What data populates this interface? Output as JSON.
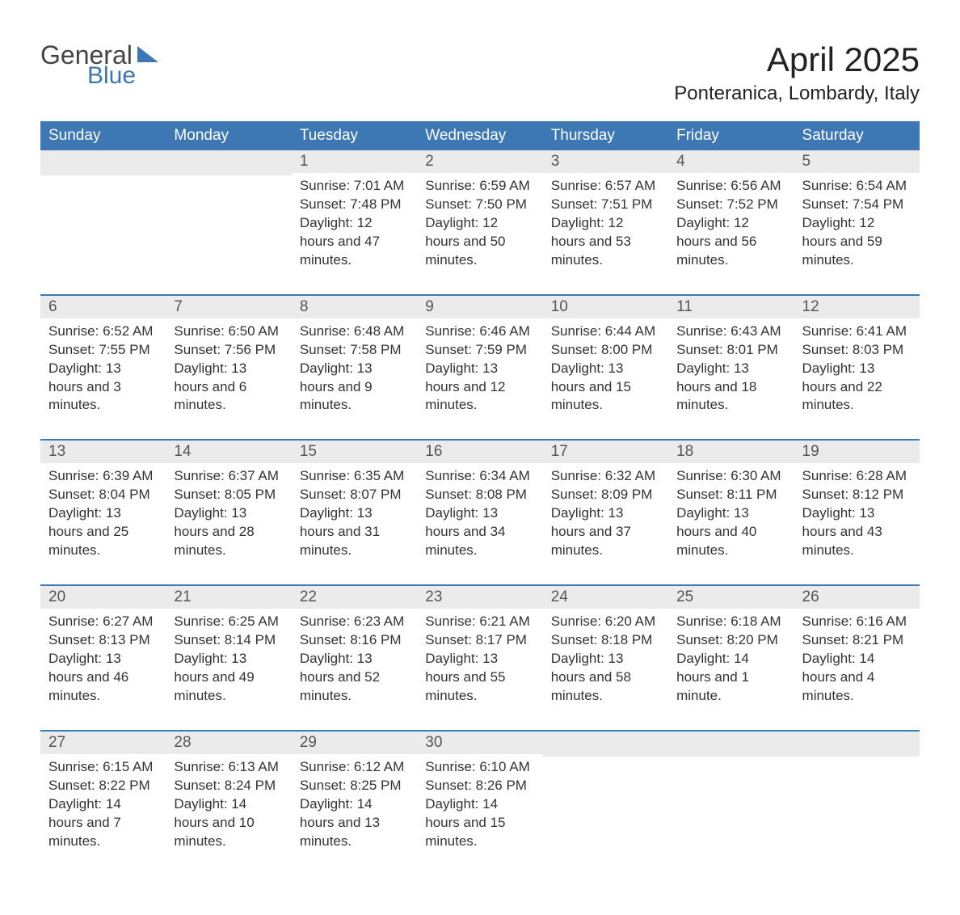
{
  "logo": {
    "text_general": "General",
    "text_blue": "Blue"
  },
  "title": "April 2025",
  "location": "Ponteranica, Lombardy, Italy",
  "colors": {
    "header_bg": "#3d78b5",
    "header_text": "#ffffff",
    "day_number_bg": "#ebebeb",
    "row_border": "#3d78b5",
    "body_text": "#333333",
    "logo_blue": "#3d78b5",
    "logo_gray": "#444444"
  },
  "weekdays": [
    "Sunday",
    "Monday",
    "Tuesday",
    "Wednesday",
    "Thursday",
    "Friday",
    "Saturday"
  ],
  "weeks": [
    [
      {
        "day": "",
        "sunrise": "",
        "sunset": "",
        "daylight": ""
      },
      {
        "day": "",
        "sunrise": "",
        "sunset": "",
        "daylight": ""
      },
      {
        "day": "1",
        "sunrise": "Sunrise: 7:01 AM",
        "sunset": "Sunset: 7:48 PM",
        "daylight": "Daylight: 12 hours and 47 minutes."
      },
      {
        "day": "2",
        "sunrise": "Sunrise: 6:59 AM",
        "sunset": "Sunset: 7:50 PM",
        "daylight": "Daylight: 12 hours and 50 minutes."
      },
      {
        "day": "3",
        "sunrise": "Sunrise: 6:57 AM",
        "sunset": "Sunset: 7:51 PM",
        "daylight": "Daylight: 12 hours and 53 minutes."
      },
      {
        "day": "4",
        "sunrise": "Sunrise: 6:56 AM",
        "sunset": "Sunset: 7:52 PM",
        "daylight": "Daylight: 12 hours and 56 minutes."
      },
      {
        "day": "5",
        "sunrise": "Sunrise: 6:54 AM",
        "sunset": "Sunset: 7:54 PM",
        "daylight": "Daylight: 12 hours and 59 minutes."
      }
    ],
    [
      {
        "day": "6",
        "sunrise": "Sunrise: 6:52 AM",
        "sunset": "Sunset: 7:55 PM",
        "daylight": "Daylight: 13 hours and 3 minutes."
      },
      {
        "day": "7",
        "sunrise": "Sunrise: 6:50 AM",
        "sunset": "Sunset: 7:56 PM",
        "daylight": "Daylight: 13 hours and 6 minutes."
      },
      {
        "day": "8",
        "sunrise": "Sunrise: 6:48 AM",
        "sunset": "Sunset: 7:58 PM",
        "daylight": "Daylight: 13 hours and 9 minutes."
      },
      {
        "day": "9",
        "sunrise": "Sunrise: 6:46 AM",
        "sunset": "Sunset: 7:59 PM",
        "daylight": "Daylight: 13 hours and 12 minutes."
      },
      {
        "day": "10",
        "sunrise": "Sunrise: 6:44 AM",
        "sunset": "Sunset: 8:00 PM",
        "daylight": "Daylight: 13 hours and 15 minutes."
      },
      {
        "day": "11",
        "sunrise": "Sunrise: 6:43 AM",
        "sunset": "Sunset: 8:01 PM",
        "daylight": "Daylight: 13 hours and 18 minutes."
      },
      {
        "day": "12",
        "sunrise": "Sunrise: 6:41 AM",
        "sunset": "Sunset: 8:03 PM",
        "daylight": "Daylight: 13 hours and 22 minutes."
      }
    ],
    [
      {
        "day": "13",
        "sunrise": "Sunrise: 6:39 AM",
        "sunset": "Sunset: 8:04 PM",
        "daylight": "Daylight: 13 hours and 25 minutes."
      },
      {
        "day": "14",
        "sunrise": "Sunrise: 6:37 AM",
        "sunset": "Sunset: 8:05 PM",
        "daylight": "Daylight: 13 hours and 28 minutes."
      },
      {
        "day": "15",
        "sunrise": "Sunrise: 6:35 AM",
        "sunset": "Sunset: 8:07 PM",
        "daylight": "Daylight: 13 hours and 31 minutes."
      },
      {
        "day": "16",
        "sunrise": "Sunrise: 6:34 AM",
        "sunset": "Sunset: 8:08 PM",
        "daylight": "Daylight: 13 hours and 34 minutes."
      },
      {
        "day": "17",
        "sunrise": "Sunrise: 6:32 AM",
        "sunset": "Sunset: 8:09 PM",
        "daylight": "Daylight: 13 hours and 37 minutes."
      },
      {
        "day": "18",
        "sunrise": "Sunrise: 6:30 AM",
        "sunset": "Sunset: 8:11 PM",
        "daylight": "Daylight: 13 hours and 40 minutes."
      },
      {
        "day": "19",
        "sunrise": "Sunrise: 6:28 AM",
        "sunset": "Sunset: 8:12 PM",
        "daylight": "Daylight: 13 hours and 43 minutes."
      }
    ],
    [
      {
        "day": "20",
        "sunrise": "Sunrise: 6:27 AM",
        "sunset": "Sunset: 8:13 PM",
        "daylight": "Daylight: 13 hours and 46 minutes."
      },
      {
        "day": "21",
        "sunrise": "Sunrise: 6:25 AM",
        "sunset": "Sunset: 8:14 PM",
        "daylight": "Daylight: 13 hours and 49 minutes."
      },
      {
        "day": "22",
        "sunrise": "Sunrise: 6:23 AM",
        "sunset": "Sunset: 8:16 PM",
        "daylight": "Daylight: 13 hours and 52 minutes."
      },
      {
        "day": "23",
        "sunrise": "Sunrise: 6:21 AM",
        "sunset": "Sunset: 8:17 PM",
        "daylight": "Daylight: 13 hours and 55 minutes."
      },
      {
        "day": "24",
        "sunrise": "Sunrise: 6:20 AM",
        "sunset": "Sunset: 8:18 PM",
        "daylight": "Daylight: 13 hours and 58 minutes."
      },
      {
        "day": "25",
        "sunrise": "Sunrise: 6:18 AM",
        "sunset": "Sunset: 8:20 PM",
        "daylight": "Daylight: 14 hours and 1 minute."
      },
      {
        "day": "26",
        "sunrise": "Sunrise: 6:16 AM",
        "sunset": "Sunset: 8:21 PM",
        "daylight": "Daylight: 14 hours and 4 minutes."
      }
    ],
    [
      {
        "day": "27",
        "sunrise": "Sunrise: 6:15 AM",
        "sunset": "Sunset: 8:22 PM",
        "daylight": "Daylight: 14 hours and 7 minutes."
      },
      {
        "day": "28",
        "sunrise": "Sunrise: 6:13 AM",
        "sunset": "Sunset: 8:24 PM",
        "daylight": "Daylight: 14 hours and 10 minutes."
      },
      {
        "day": "29",
        "sunrise": "Sunrise: 6:12 AM",
        "sunset": "Sunset: 8:25 PM",
        "daylight": "Daylight: 14 hours and 13 minutes."
      },
      {
        "day": "30",
        "sunrise": "Sunrise: 6:10 AM",
        "sunset": "Sunset: 8:26 PM",
        "daylight": "Daylight: 14 hours and 15 minutes."
      },
      {
        "day": "",
        "sunrise": "",
        "sunset": "",
        "daylight": ""
      },
      {
        "day": "",
        "sunrise": "",
        "sunset": "",
        "daylight": ""
      },
      {
        "day": "",
        "sunrise": "",
        "sunset": "",
        "daylight": ""
      }
    ]
  ]
}
